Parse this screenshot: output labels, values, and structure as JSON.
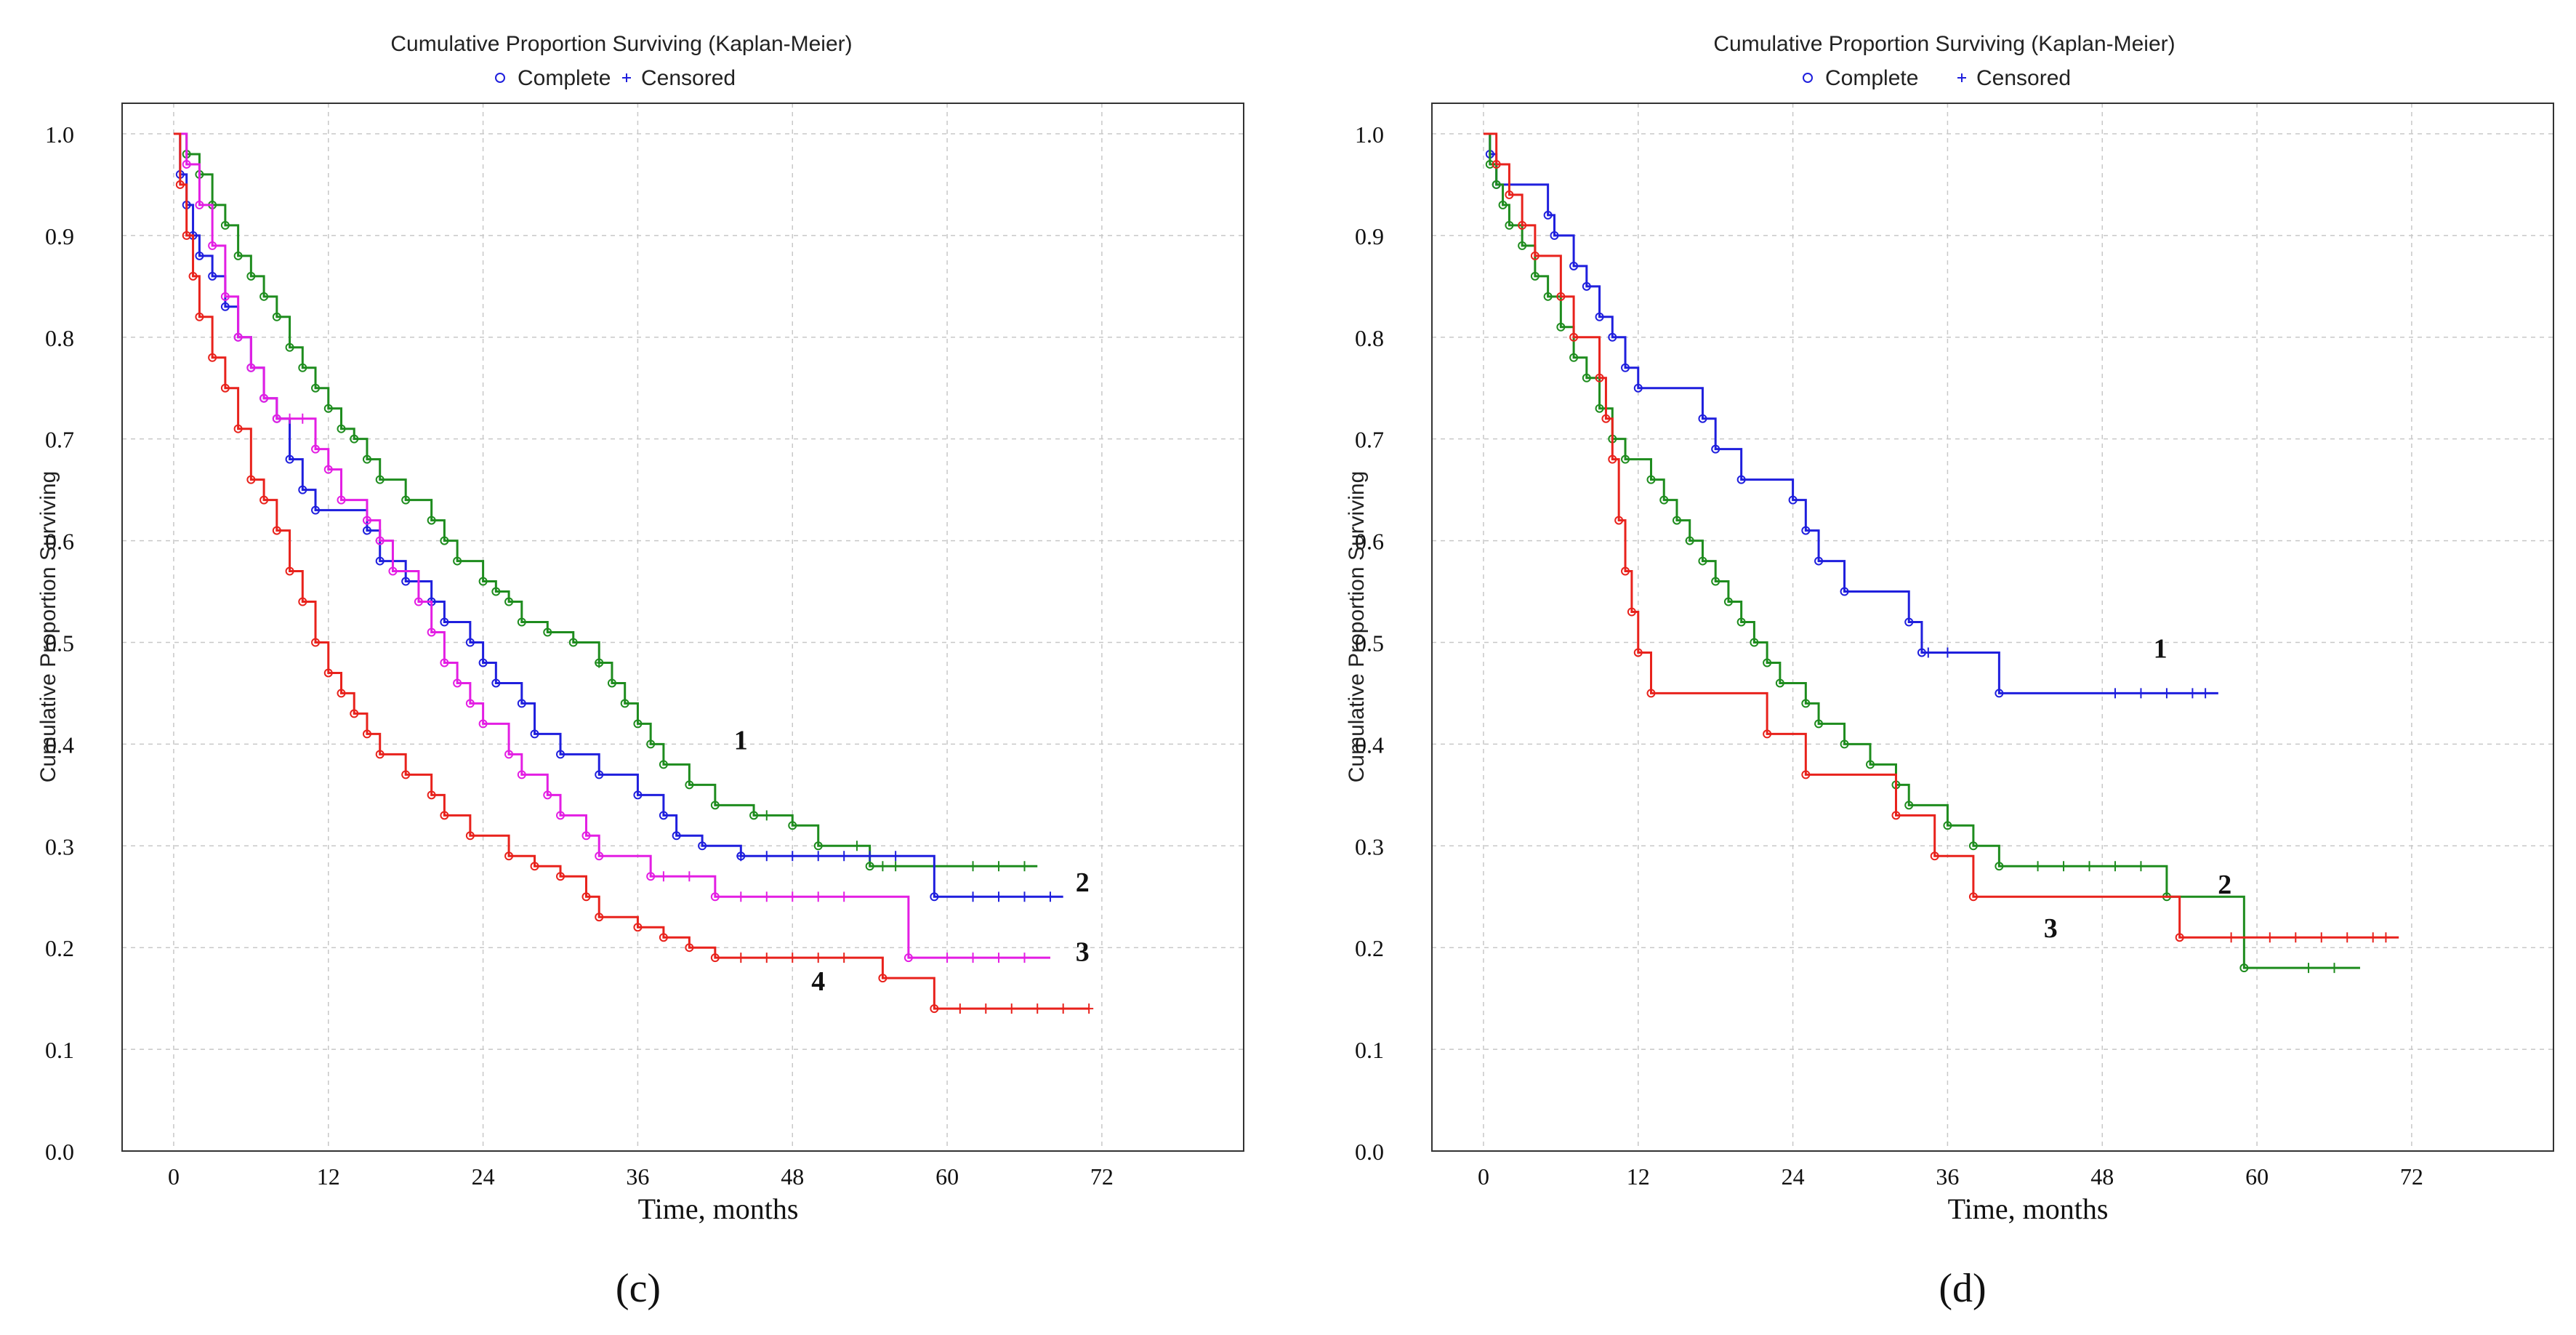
{
  "figure": {
    "panels": [
      {
        "title": "Cumulative Proportion Surviving (Kaplan-Meier)",
        "legend": {
          "complete_label": "Complete",
          "censored_label": "Censored"
        },
        "panel_label": "(c)"
      },
      {
        "title": "Cumulative Proportion Surviving (Kaplan-Meier)",
        "legend": {
          "complete_label": "Complete",
          "censored_label": "Censored"
        },
        "panel_label": "(d)"
      }
    ]
  },
  "colors": {
    "blue": "#1f1fdd",
    "green": "#1e8c1e",
    "magenta": "#e31ee3",
    "red": "#e8221c"
  },
  "chart_data": [
    {
      "type": "line",
      "title": "Cumulative Proportion Surviving (Kaplan-Meier)",
      "xlabel": "Time, months",
      "ylabel": "Cumulative Proportion Surviving",
      "xlim": [
        -4,
        83
      ],
      "ylim": [
        0,
        1.03
      ],
      "x_ticks": [
        "0",
        "12",
        "24",
        "36",
        "48",
        "60",
        "72"
      ],
      "y_ticks": [
        "0.0",
        "0.1",
        "0.2",
        "0.3",
        "0.4",
        "0.5",
        "0.6",
        "0.7",
        "0.8",
        "0.9",
        "1.0"
      ],
      "grid": true,
      "legend": [
        "Complete",
        "Censored"
      ],
      "series": [
        {
          "color": "green",
          "label": "1",
          "label_at": [
            44,
            0.395
          ],
          "end_x": 67,
          "points": [
            [
              0,
              1
            ],
            [
              1,
              0.98
            ],
            [
              2,
              0.96
            ],
            [
              3,
              0.93
            ],
            [
              4,
              0.91
            ],
            [
              5,
              0.88
            ],
            [
              6,
              0.86
            ],
            [
              7,
              0.84
            ],
            [
              8,
              0.82
            ],
            [
              9,
              0.79
            ],
            [
              10,
              0.77
            ],
            [
              11,
              0.75
            ],
            [
              12,
              0.73
            ],
            [
              13,
              0.71
            ],
            [
              14,
              0.7
            ],
            [
              15,
              0.68
            ],
            [
              16,
              0.66
            ],
            [
              18,
              0.64
            ],
            [
              20,
              0.62
            ],
            [
              21,
              0.6
            ],
            [
              22,
              0.58
            ],
            [
              24,
              0.56
            ],
            [
              25,
              0.55
            ],
            [
              26,
              0.54
            ],
            [
              27,
              0.52
            ],
            [
              29,
              0.51
            ],
            [
              31,
              0.5
            ],
            [
              33,
              0.48
            ],
            [
              34,
              0.46
            ],
            [
              35,
              0.44
            ],
            [
              36,
              0.42
            ],
            [
              37,
              0.4
            ],
            [
              38,
              0.38
            ],
            [
              40,
              0.36
            ],
            [
              42,
              0.34
            ],
            [
              45,
              0.33
            ],
            [
              48,
              0.32
            ],
            [
              50,
              0.3
            ],
            [
              54,
              0.28
            ]
          ],
          "censored_x": [
            33,
            46,
            53,
            55,
            56,
            62,
            64,
            66
          ]
        },
        {
          "color": "blue",
          "label": "2",
          "label_at": [
            70.5,
            0.255
          ],
          "end_x": 69,
          "points": [
            [
              0,
              1
            ],
            [
              0.5,
              0.96
            ],
            [
              1,
              0.93
            ],
            [
              1.5,
              0.9
            ],
            [
              2,
              0.88
            ],
            [
              3,
              0.86
            ],
            [
              4,
              0.83
            ],
            [
              5,
              0.8
            ],
            [
              6,
              0.77
            ],
            [
              7,
              0.74
            ],
            [
              8,
              0.72
            ],
            [
              9,
              0.68
            ],
            [
              10,
              0.65
            ],
            [
              11,
              0.63
            ],
            [
              15,
              0.61
            ],
            [
              16,
              0.58
            ],
            [
              18,
              0.56
            ],
            [
              20,
              0.54
            ],
            [
              21,
              0.52
            ],
            [
              23,
              0.5
            ],
            [
              24,
              0.48
            ],
            [
              25,
              0.46
            ],
            [
              27,
              0.44
            ],
            [
              28,
              0.41
            ],
            [
              30,
              0.39
            ],
            [
              33,
              0.37
            ],
            [
              36,
              0.35
            ],
            [
              38,
              0.33
            ],
            [
              39,
              0.31
            ],
            [
              41,
              0.3
            ],
            [
              44,
              0.29
            ],
            [
              59,
              0.25
            ]
          ],
          "censored_x": [
            44,
            46,
            48,
            50,
            52,
            54,
            56,
            62,
            64,
            66,
            68
          ]
        },
        {
          "color": "magenta",
          "label": "3",
          "label_at": [
            70.5,
            0.187
          ],
          "end_x": 68,
          "points": [
            [
              0,
              1
            ],
            [
              1,
              0.97
            ],
            [
              2,
              0.93
            ],
            [
              3,
              0.89
            ],
            [
              4,
              0.84
            ],
            [
              5,
              0.8
            ],
            [
              6,
              0.77
            ],
            [
              7,
              0.74
            ],
            [
              8,
              0.72
            ],
            [
              11,
              0.69
            ],
            [
              12,
              0.67
            ],
            [
              13,
              0.64
            ],
            [
              15,
              0.62
            ],
            [
              16,
              0.6
            ],
            [
              17,
              0.57
            ],
            [
              19,
              0.54
            ],
            [
              20,
              0.51
            ],
            [
              21,
              0.48
            ],
            [
              22,
              0.46
            ],
            [
              23,
              0.44
            ],
            [
              24,
              0.42
            ],
            [
              26,
              0.39
            ],
            [
              27,
              0.37
            ],
            [
              29,
              0.35
            ],
            [
              30,
              0.33
            ],
            [
              32,
              0.31
            ],
            [
              33,
              0.29
            ],
            [
              37,
              0.27
            ],
            [
              42,
              0.25
            ],
            [
              57,
              0.19
            ]
          ],
          "censored_x": [
            9,
            10,
            38,
            40,
            44,
            46,
            48,
            50,
            52,
            60,
            62,
            64,
            66
          ]
        },
        {
          "color": "red",
          "label": "4",
          "label_at": [
            50,
            0.158
          ],
          "end_x": 71,
          "points": [
            [
              0,
              1
            ],
            [
              0.5,
              0.95
            ],
            [
              1,
              0.9
            ],
            [
              1.5,
              0.86
            ],
            [
              2,
              0.82
            ],
            [
              3,
              0.78
            ],
            [
              4,
              0.75
            ],
            [
              5,
              0.71
            ],
            [
              6,
              0.66
            ],
            [
              7,
              0.64
            ],
            [
              8,
              0.61
            ],
            [
              9,
              0.57
            ],
            [
              10,
              0.54
            ],
            [
              11,
              0.5
            ],
            [
              12,
              0.47
            ],
            [
              13,
              0.45
            ],
            [
              14,
              0.43
            ],
            [
              15,
              0.41
            ],
            [
              16,
              0.39
            ],
            [
              18,
              0.37
            ],
            [
              20,
              0.35
            ],
            [
              21,
              0.33
            ],
            [
              23,
              0.31
            ],
            [
              26,
              0.29
            ],
            [
              28,
              0.28
            ],
            [
              30,
              0.27
            ],
            [
              32,
              0.25
            ],
            [
              33,
              0.23
            ],
            [
              36,
              0.22
            ],
            [
              38,
              0.21
            ],
            [
              40,
              0.2
            ],
            [
              42,
              0.19
            ],
            [
              55,
              0.17
            ],
            [
              59,
              0.14
            ]
          ],
          "censored_x": [
            44,
            46,
            48,
            50,
            52,
            61,
            63,
            65,
            67,
            69,
            71
          ]
        }
      ]
    },
    {
      "type": "line",
      "title": "Cumulative Proportion Surviving (Kaplan-Meier)",
      "xlabel": "Time, months",
      "ylabel": "Cumulative Proportion Surviving",
      "xlim": [
        -4,
        83
      ],
      "ylim": [
        0,
        1.03
      ],
      "x_ticks": [
        "0",
        "12",
        "24",
        "36",
        "48",
        "60",
        "72"
      ],
      "y_ticks": [
        "0.0",
        "0.1",
        "0.2",
        "0.3",
        "0.4",
        "0.5",
        "0.6",
        "0.7",
        "0.8",
        "0.9",
        "1.0"
      ],
      "grid": true,
      "legend": [
        "Complete",
        "Censored"
      ],
      "series": [
        {
          "color": "blue",
          "label": "1",
          "label_at": [
            52.5,
            0.485
          ],
          "end_x": 57,
          "points": [
            [
              0,
              1
            ],
            [
              0.5,
              0.98
            ],
            [
              1,
              0.95
            ],
            [
              5,
              0.92
            ],
            [
              5.5,
              0.9
            ],
            [
              7,
              0.87
            ],
            [
              8,
              0.85
            ],
            [
              9,
              0.82
            ],
            [
              10,
              0.8
            ],
            [
              11,
              0.77
            ],
            [
              12,
              0.75
            ],
            [
              17,
              0.72
            ],
            [
              18,
              0.69
            ],
            [
              20,
              0.66
            ],
            [
              24,
              0.64
            ],
            [
              25,
              0.61
            ],
            [
              26,
              0.58
            ],
            [
              28,
              0.55
            ],
            [
              33,
              0.52
            ],
            [
              34,
              0.49
            ],
            [
              40,
              0.45
            ]
          ],
          "censored_x": [
            34.5,
            36,
            49,
            51,
            53,
            55,
            56
          ]
        },
        {
          "color": "green",
          "label": "2",
          "label_at": [
            57.5,
            0.253
          ],
          "end_x": 68,
          "points": [
            [
              0,
              1
            ],
            [
              0.5,
              0.97
            ],
            [
              1,
              0.95
            ],
            [
              1.5,
              0.93
            ],
            [
              2,
              0.91
            ],
            [
              3,
              0.89
            ],
            [
              4,
              0.86
            ],
            [
              5,
              0.84
            ],
            [
              6,
              0.81
            ],
            [
              7,
              0.78
            ],
            [
              8,
              0.76
            ],
            [
              9,
              0.73
            ],
            [
              10,
              0.7
            ],
            [
              11,
              0.68
            ],
            [
              13,
              0.66
            ],
            [
              14,
              0.64
            ],
            [
              15,
              0.62
            ],
            [
              16,
              0.6
            ],
            [
              17,
              0.58
            ],
            [
              18,
              0.56
            ],
            [
              19,
              0.54
            ],
            [
              20,
              0.52
            ],
            [
              21,
              0.5
            ],
            [
              22,
              0.48
            ],
            [
              23,
              0.46
            ],
            [
              25,
              0.44
            ],
            [
              26,
              0.42
            ],
            [
              28,
              0.4
            ],
            [
              30,
              0.38
            ],
            [
              32,
              0.36
            ],
            [
              33,
              0.34
            ],
            [
              36,
              0.32
            ],
            [
              38,
              0.3
            ],
            [
              40,
              0.28
            ],
            [
              53,
              0.25
            ],
            [
              59,
              0.18
            ]
          ],
          "censored_x": [
            43,
            45,
            47,
            49,
            51,
            64,
            66
          ]
        },
        {
          "color": "red",
          "label": "3",
          "label_at": [
            44,
            0.21
          ],
          "end_x": 71,
          "points": [
            [
              0,
              1
            ],
            [
              1,
              0.97
            ],
            [
              2,
              0.94
            ],
            [
              3,
              0.91
            ],
            [
              4,
              0.88
            ],
            [
              6,
              0.84
            ],
            [
              7,
              0.8
            ],
            [
              9,
              0.76
            ],
            [
              9.5,
              0.72
            ],
            [
              10,
              0.68
            ],
            [
              10.5,
              0.62
            ],
            [
              11,
              0.57
            ],
            [
              11.5,
              0.53
            ],
            [
              12,
              0.49
            ],
            [
              13,
              0.45
            ],
            [
              22,
              0.41
            ],
            [
              25,
              0.37
            ],
            [
              32,
              0.33
            ],
            [
              35,
              0.29
            ],
            [
              38,
              0.25
            ],
            [
              54,
              0.21
            ]
          ],
          "censored_x": [
            58,
            61,
            63,
            65,
            67,
            69,
            70
          ]
        }
      ]
    }
  ]
}
